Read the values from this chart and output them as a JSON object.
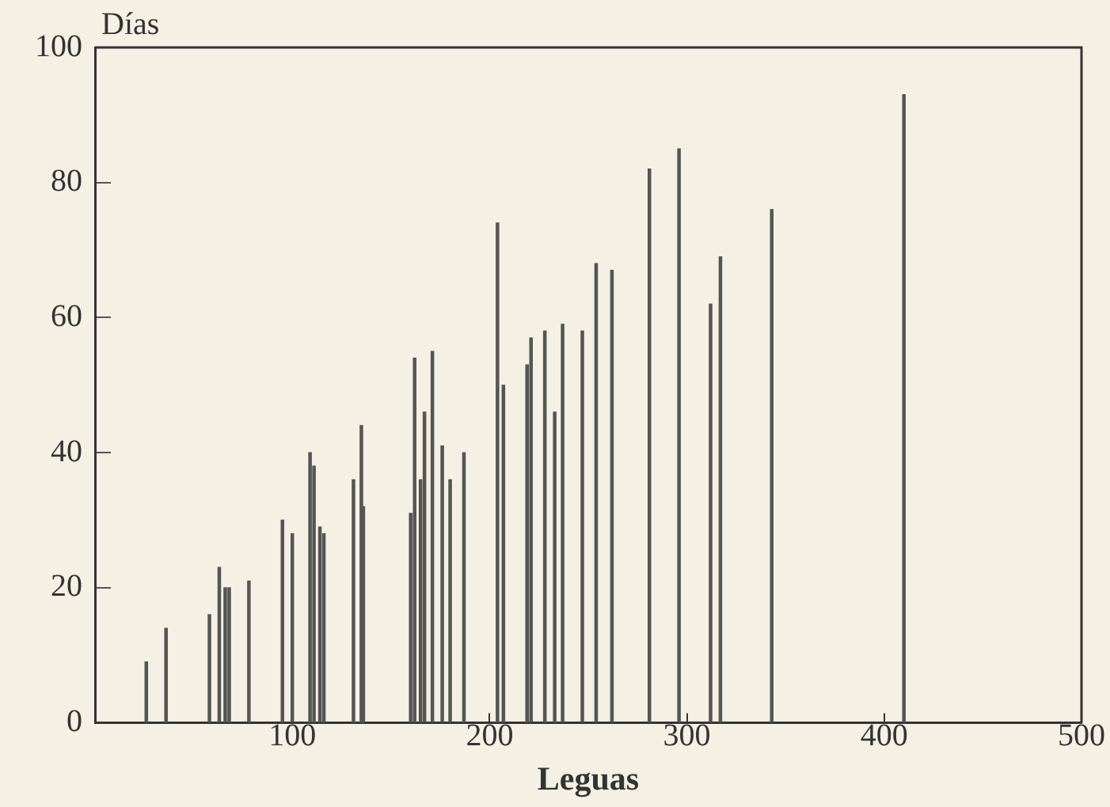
{
  "chart_data": {
    "type": "bar",
    "xlabel": "Leguas",
    "ylabel": "Días",
    "x": [
      26,
      36,
      58,
      63,
      66,
      68,
      78,
      95,
      100,
      109,
      111,
      114,
      116,
      131,
      135,
      136,
      160,
      162,
      165,
      167,
      171,
      176,
      180,
      187,
      204,
      207,
      219,
      221,
      228,
      233,
      237,
      247,
      254,
      262,
      281,
      296,
      312,
      317,
      343,
      410
    ],
    "values": [
      9,
      14,
      16,
      23,
      20,
      20,
      21,
      30,
      28,
      40,
      38,
      29,
      28,
      36,
      44,
      32,
      31,
      54,
      36,
      46,
      55,
      41,
      36,
      40,
      74,
      50,
      53,
      57,
      58,
      46,
      59,
      58,
      68,
      67,
      82,
      85,
      62,
      69,
      76,
      93
    ],
    "color": "#555555",
    "xlim": [
      0,
      500
    ],
    "xticks": [
      100,
      200,
      300,
      400,
      500
    ],
    "ylim": [
      0,
      100
    ],
    "yticks": [
      0,
      20,
      40,
      60,
      80,
      100
    ],
    "grid": false,
    "legend": false
  }
}
